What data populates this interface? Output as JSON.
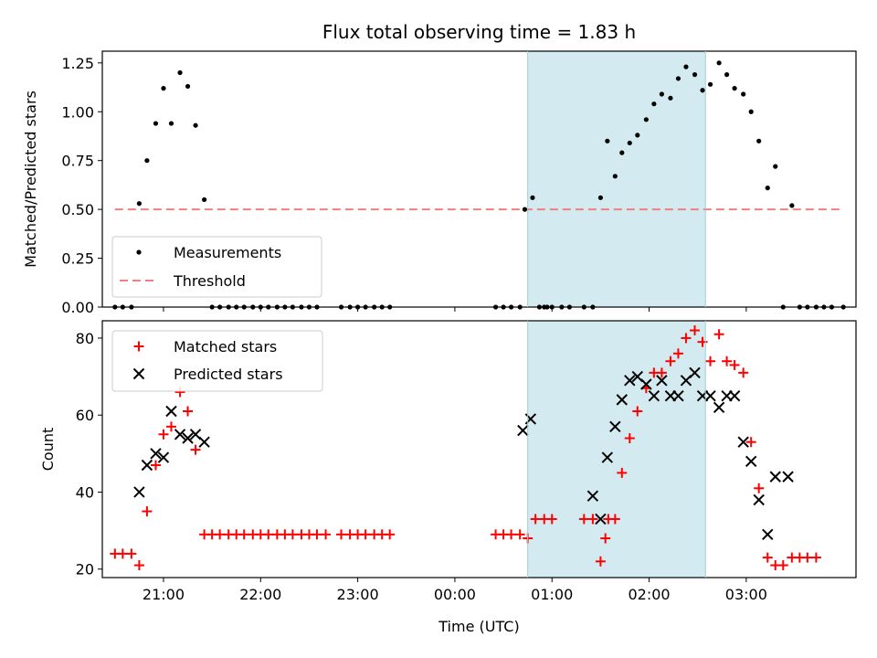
{
  "chart_data": [
    {
      "type": "scatter",
      "title": "Flux total observing time = 1.83 h",
      "xlabel": "",
      "ylabel": "Matched/Predicted stars",
      "ylim": [
        0,
        1.31
      ],
      "yticks": [
        "0.00",
        "0.25",
        "0.50",
        "0.75",
        "1.00",
        "1.25"
      ],
      "ytick_values": [
        0,
        0.25,
        0.5,
        0.75,
        1.0,
        1.25
      ],
      "x_unit": "hours since 20:00 UTC",
      "xlim": [
        0.37,
        8.13
      ],
      "threshold": {
        "name": "Threshold",
        "value": 0.5,
        "x_range": [
          0.5,
          8.0
        ],
        "color": "#f08080"
      },
      "highlight": {
        "x_range": [
          4.75,
          6.58
        ],
        "color": "#d3ebf0"
      },
      "legend_position": "lower-left",
      "legend": [
        "Measurements",
        "Threshold"
      ],
      "series": [
        {
          "name": "Measurements",
          "color": "#000000",
          "x": [
            0.5,
            0.58,
            0.67,
            0.75,
            0.83,
            0.92,
            1.0,
            1.08,
            1.17,
            1.25,
            1.33,
            1.42,
            1.5,
            1.58,
            1.67,
            1.75,
            1.83,
            1.92,
            2.0,
            2.08,
            2.17,
            2.25,
            2.33,
            2.42,
            2.5,
            2.58,
            2.83,
            2.92,
            3.0,
            3.08,
            3.17,
            3.25,
            3.33,
            4.42,
            4.5,
            4.58,
            4.67,
            4.72,
            4.8,
            4.92,
            5.0,
            5.33,
            5.42,
            4.87,
            4.95,
            5.1,
            5.18,
            5.5,
            5.57,
            5.65,
            5.72,
            5.8,
            5.88,
            5.97,
            6.05,
            6.13,
            6.22,
            6.3,
            6.38,
            6.47,
            6.55,
            6.63,
            6.72,
            6.8,
            6.88,
            6.97,
            7.05,
            7.13,
            7.22,
            7.3,
            7.38,
            7.47,
            7.55,
            7.63,
            7.72,
            7.8,
            7.88,
            8.0
          ],
          "y": [
            0,
            0,
            0,
            0.53,
            0.75,
            0.94,
            1.12,
            0.94,
            1.2,
            1.13,
            0.93,
            0.55,
            0,
            0,
            0,
            0,
            0,
            0,
            0,
            0,
            0,
            0,
            0,
            0,
            0,
            0,
            0,
            0,
            0,
            0,
            0,
            0,
            0,
            0,
            0,
            0,
            0,
            0.5,
            0.56,
            0,
            0,
            0,
            0,
            0,
            0,
            0,
            0,
            0.56,
            0.85,
            0.67,
            0.79,
            0.84,
            0.88,
            0.96,
            1.04,
            1.09,
            1.07,
            1.17,
            1.23,
            1.19,
            1.11,
            1.14,
            1.25,
            1.19,
            1.12,
            1.09,
            1.0,
            0.85,
            0.61,
            0.72,
            0,
            0.52,
            0,
            0,
            0,
            0,
            0,
            0
          ]
        }
      ]
    },
    {
      "type": "scatter",
      "title": "",
      "xlabel": "Time (UTC)",
      "ylabel": "Count",
      "ylim": [
        17.8,
        84.5
      ],
      "yticks": [
        "20",
        "40",
        "60",
        "80"
      ],
      "ytick_values": [
        20,
        40,
        60,
        80
      ],
      "x_unit": "hours since 20:00 UTC",
      "xlim": [
        0.37,
        8.13
      ],
      "xticks": [
        "21:00",
        "22:00",
        "23:00",
        "00:00",
        "01:00",
        "02:00",
        "03:00"
      ],
      "xtick_values": [
        1,
        2,
        3,
        4,
        5,
        6,
        7
      ],
      "highlight": {
        "x_range": [
          4.75,
          6.58
        ],
        "color": "#d3ebf0"
      },
      "legend_position": "upper-left",
      "legend": [
        "Matched stars",
        "Predicted stars"
      ],
      "series": [
        {
          "name": "Matched stars",
          "marker": "plus",
          "color": "#ff0000",
          "x": [
            0.5,
            0.58,
            0.67,
            0.75,
            0.83,
            0.92,
            1.0,
            1.08,
            1.17,
            1.25,
            1.33,
            1.42,
            1.5,
            1.58,
            1.67,
            1.75,
            1.83,
            1.92,
            2.0,
            2.08,
            2.17,
            2.25,
            2.33,
            2.42,
            2.5,
            2.58,
            2.67,
            2.83,
            2.92,
            3.0,
            3.08,
            3.17,
            3.25,
            3.33,
            4.42,
            4.5,
            4.58,
            4.67,
            4.75,
            4.83,
            4.92,
            5.0,
            5.33,
            5.42,
            5.5,
            5.55,
            5.58,
            5.65,
            5.72,
            5.8,
            5.88,
            5.97,
            6.05,
            6.13,
            6.22,
            6.3,
            6.38,
            6.47,
            6.55,
            6.63,
            6.72,
            6.8,
            6.88,
            6.97,
            7.05,
            7.13,
            7.22,
            7.3,
            7.38,
            7.47,
            7.55,
            7.63,
            7.72
          ],
          "y": [
            24,
            24,
            24,
            21,
            35,
            47,
            55,
            57,
            66,
            61,
            51,
            29,
            29,
            29,
            29,
            29,
            29,
            29,
            29,
            29,
            29,
            29,
            29,
            29,
            29,
            29,
            29,
            29,
            29,
            29,
            29,
            29,
            29,
            29,
            29,
            29,
            29,
            29,
            28,
            33,
            33,
            33,
            33,
            33,
            22,
            28,
            33,
            33,
            45,
            54,
            61,
            67,
            71,
            71,
            74,
            76,
            80,
            82,
            79,
            74,
            81,
            74,
            73,
            71,
            53,
            41,
            23,
            21,
            21,
            23,
            23,
            23,
            23
          ]
        },
        {
          "name": "Predicted stars",
          "marker": "cross",
          "color": "#000000",
          "x": [
            0.75,
            0.83,
            0.92,
            1.0,
            1.08,
            1.17,
            1.25,
            1.33,
            1.42,
            4.7,
            4.78,
            5.42,
            5.5,
            5.57,
            5.65,
            5.72,
            5.8,
            5.88,
            5.97,
            6.05,
            6.13,
            6.22,
            6.3,
            6.38,
            6.47,
            6.55,
            6.63,
            6.72,
            6.8,
            6.88,
            6.97,
            7.05,
            7.13,
            7.22,
            7.3,
            7.43
          ],
          "y": [
            40,
            47,
            50,
            49,
            61,
            55,
            54,
            55,
            53,
            56,
            59,
            39,
            33,
            49,
            57,
            64,
            69,
            70,
            68,
            65,
            69,
            65,
            65,
            69,
            71,
            65,
            65,
            62,
            65,
            65,
            53,
            48,
            38,
            29,
            44,
            44
          ]
        }
      ]
    }
  ]
}
